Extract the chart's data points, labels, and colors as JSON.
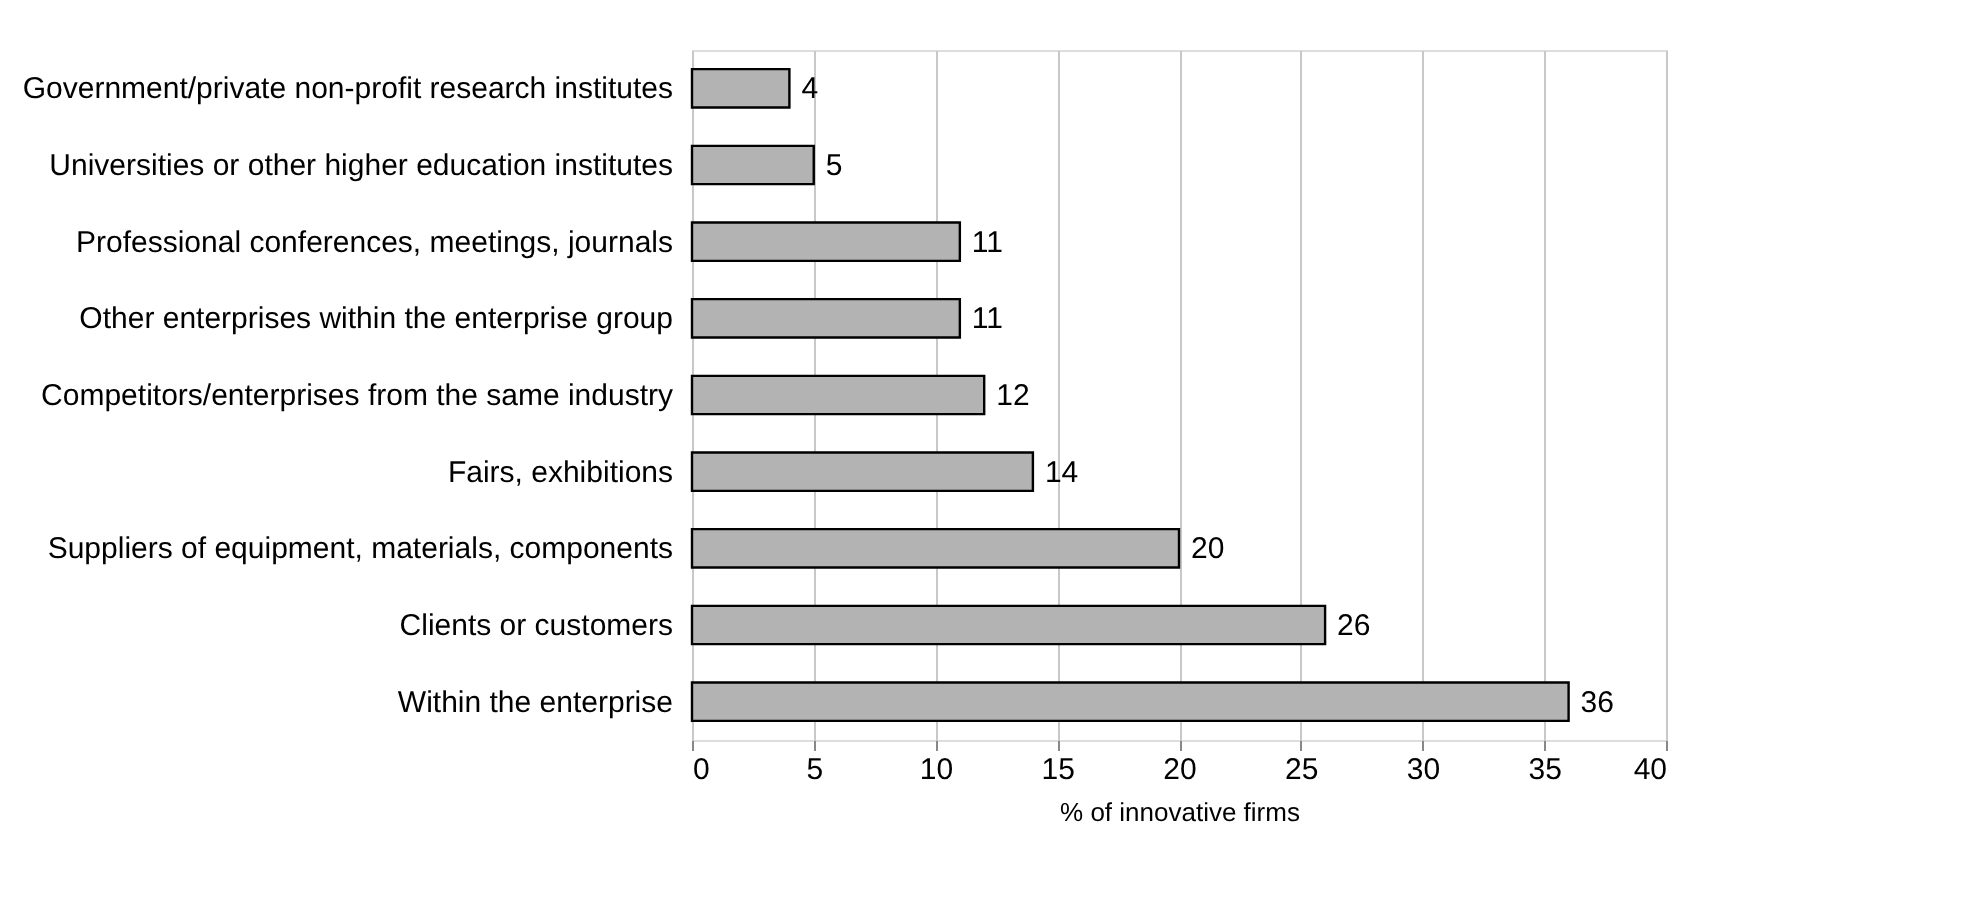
{
  "chart_data": {
    "type": "bar",
    "orientation": "horizontal",
    "xlabel": "% of innovative firms",
    "categories": [
      "Government/private non-profit research institutes",
      "Universities or other higher education institutes",
      "Professional conferences, meetings, journals",
      "Other enterprises within the enterprise group",
      "Competitors/enterprises from the same industry",
      "Fairs, exhibitions",
      "Suppliers of equipment, materials, components",
      "Clients or customers",
      "Within the enterprise"
    ],
    "values": [
      4,
      5,
      11,
      11,
      12,
      14,
      20,
      26,
      36
    ],
    "color": "#b3b3b3",
    "xlim": [
      0,
      40
    ],
    "xticks": [
      0,
      5,
      10,
      15,
      20,
      25,
      30,
      35,
      40
    ],
    "grid": "x",
    "data_labels": true
  }
}
